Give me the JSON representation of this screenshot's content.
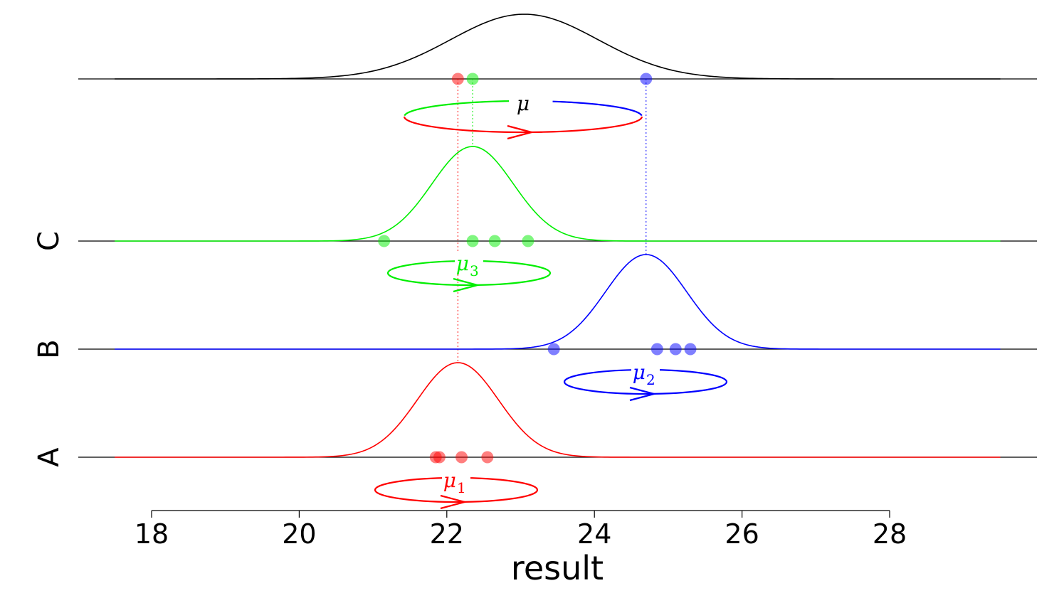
{
  "chart_data": {
    "type": "line",
    "xlabel": "result",
    "xlim": [
      18,
      28
    ],
    "xticks": [
      "18",
      "20",
      "22",
      "24",
      "26",
      "28"
    ],
    "row_labels": [
      "A",
      "B",
      "C"
    ],
    "grid": false,
    "groups": [
      {
        "id": "A",
        "color": "#ff0000",
        "mean": 22.15,
        "sd": 0.55,
        "points": [
          21.85,
          21.9,
          22.2,
          22.55
        ],
        "mu_label": "μ",
        "mu_sub": "1"
      },
      {
        "id": "B",
        "color": "#0000ff",
        "mean": 24.7,
        "sd": 0.55,
        "points": [
          23.45,
          24.85,
          25.1,
          25.3
        ],
        "mu_label": "μ",
        "mu_sub": "2"
      },
      {
        "id": "C",
        "color": "#00ee00",
        "mean": 22.35,
        "sd": 0.55,
        "points": [
          21.15,
          22.35,
          22.65,
          23.1
        ],
        "mu_label": "μ",
        "mu_sub": "3"
      }
    ],
    "top": {
      "color": "#000000",
      "mean": 23.05,
      "sd": 1.0,
      "mu_label": "μ",
      "points": [
        {
          "x": 22.15,
          "color": "#ff0000"
        },
        {
          "x": 22.35,
          "color": "#00ee00"
        },
        {
          "x": 24.7,
          "color": "#0000ff"
        }
      ]
    }
  }
}
